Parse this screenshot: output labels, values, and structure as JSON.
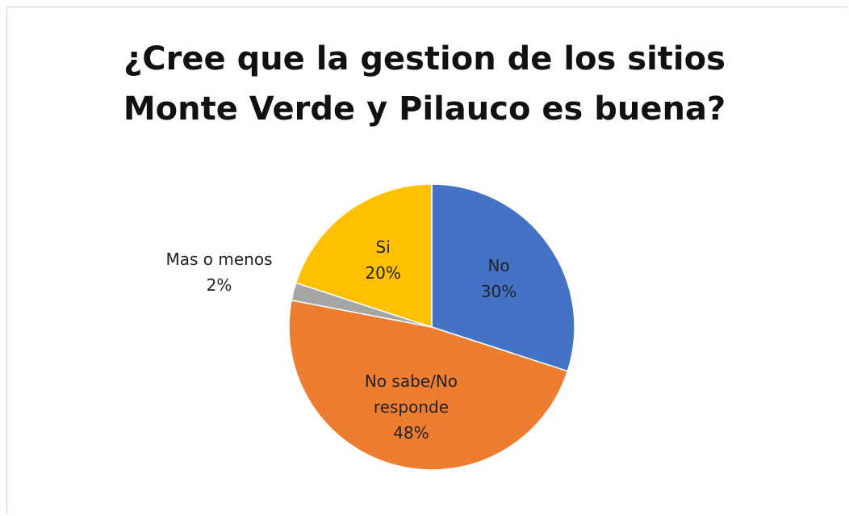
{
  "chart_data": {
    "type": "pie",
    "title": "¿Cree que la gestion de los sitios\nMonte Verde y Pilauco es buena?",
    "categories": [
      "No",
      "No sabe/No responde",
      "Mas o menos",
      "Si"
    ],
    "values": [
      30,
      48,
      2,
      20
    ],
    "value_labels": [
      "30%",
      "48%",
      "2%",
      "20%"
    ],
    "colors": [
      "#4472c4",
      "#ed7d31",
      "#a5a5a5",
      "#ffc000"
    ]
  }
}
